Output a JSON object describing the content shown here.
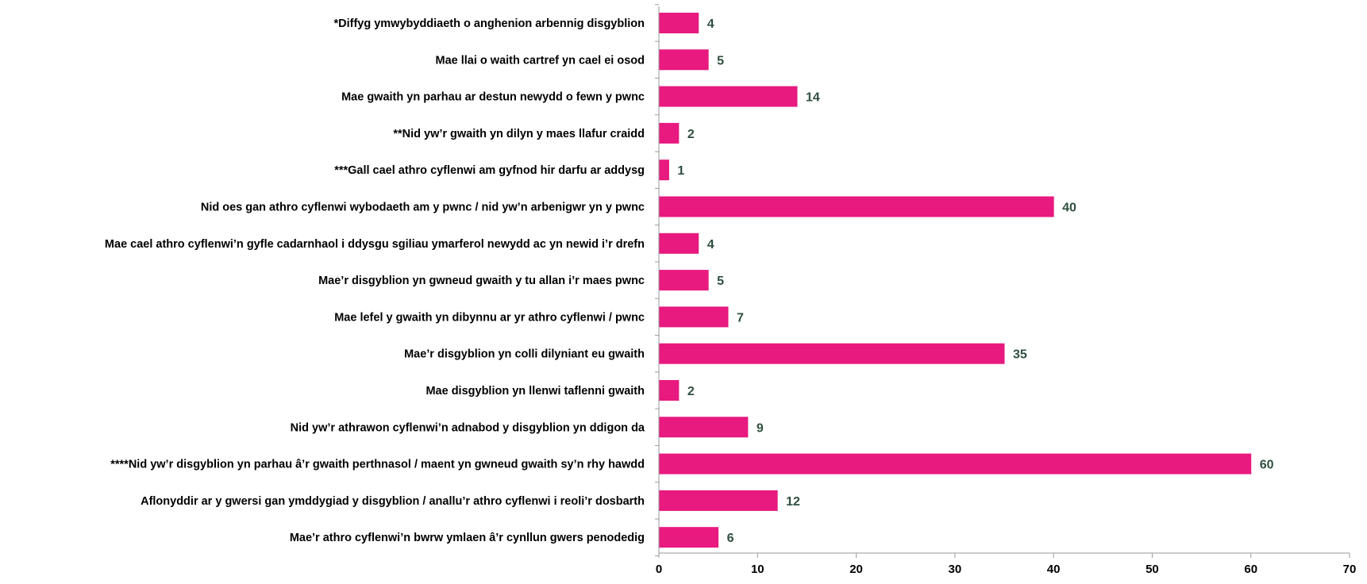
{
  "chart_data": {
    "type": "bar",
    "orientation": "horizontal",
    "categories": [
      "*Diffyg ymwybyddiaeth o anghenion arbennig disgyblion",
      "Mae llai o waith cartref yn cael ei osod",
      "Mae gwaith yn parhau ar destun newydd o fewn y pwnc",
      "**Nid yw’r gwaith yn dilyn y maes llafur craidd",
      "***Gall cael athro cyflenwi am gyfnod hir darfu ar addysg",
      "Nid oes gan athro cyflenwi wybodaeth am y pwnc / nid yw’n arbenigwr yn y pwnc",
      "Mae cael athro cyflenwi’n gyfle cadarnhaol i ddysgu sgiliau ymarferol newydd ac yn newid i’r drefn",
      "Mae’r disgyblion yn gwneud gwaith y tu allan i’r maes pwnc",
      "Mae lefel y gwaith yn dibynnu ar yr athro cyflenwi / pwnc",
      "Mae’r disgyblion yn colli dilyniant eu gwaith",
      "Mae disgyblion yn llenwi taflenni gwaith",
      "Nid yw’r athrawon cyflenwi’n adnabod y disgyblion yn ddigon da",
      "****Nid yw’r disgyblion yn parhau â’r gwaith perthnasol / maent yn gwneud gwaith sy’n rhy hawdd",
      "Aflonyddir ar y gwersi gan ymddygiad y disgyblion / anallu’r athro cyflenwi i reoli’r dosbarth",
      "Mae’r athro cyflenwi’n bwrw ymlaen â’r cynllun gwers penodedig"
    ],
    "values": [
      4,
      5,
      14,
      2,
      1,
      40,
      4,
      5,
      7,
      35,
      2,
      9,
      60,
      12,
      6
    ],
    "xlim": [
      0,
      70
    ],
    "xticks": [
      0,
      10,
      20,
      30,
      40,
      50,
      60,
      70
    ],
    "title": "",
    "xlabel": "",
    "ylabel": "",
    "grid": false,
    "bar_color": "#E8197F",
    "value_label_color": "#2F4F3F",
    "axis_color": "#9a9a9a",
    "text_color": "#000000"
  }
}
